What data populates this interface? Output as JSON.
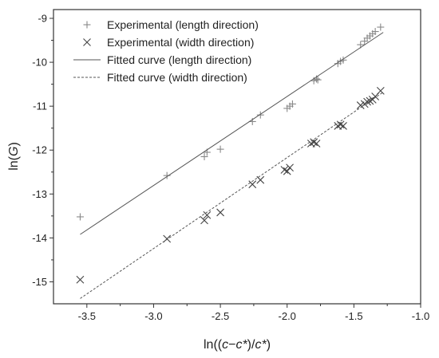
{
  "chart_data": {
    "type": "scatter",
    "xlabel_parts": [
      {
        "text": "ln(("
      },
      {
        "text": "c",
        "italic": true
      },
      {
        "text": "−"
      },
      {
        "text": "c*",
        "italic": true
      },
      {
        "text": ")/"
      },
      {
        "text": "c*",
        "italic": true
      },
      {
        "text": ")"
      }
    ],
    "ylabel_parts": [
      {
        "text": "ln("
      },
      {
        "text": "G",
        "italic": true
      },
      {
        "text": ")"
      }
    ],
    "xlim": [
      -3.75,
      -1.0
    ],
    "ylim": [
      -15.5,
      -8.8
    ],
    "x_ticks": [
      -3.5,
      -3.0,
      -2.5,
      -2.0,
      -1.5,
      -1.0
    ],
    "x_tick_labels": [
      "-3.5",
      "-3.0",
      "-2.5",
      "-2.0",
      "-1.5",
      "-1.0"
    ],
    "y_ticks": [
      -15,
      -14,
      -13,
      -12,
      -11,
      -10,
      -9
    ],
    "y_tick_labels": [
      "-15",
      "-14",
      "-13",
      "-12",
      "-11",
      "-10",
      "-9"
    ],
    "grid": false,
    "legend_position": "top-right",
    "series": [
      {
        "name": "Experimental (length direction)",
        "kind": "points",
        "marker": "plus",
        "color": "#888888",
        "x": [
          -3.55,
          -2.9,
          -2.62,
          -2.6,
          -2.5,
          -2.26,
          -2.2,
          -2.0,
          -1.98,
          -1.96,
          -1.8,
          -1.78,
          -1.77,
          -1.62,
          -1.6,
          -1.58,
          -1.45,
          -1.42,
          -1.4,
          -1.38,
          -1.36,
          -1.34,
          -1.3
        ],
        "y": [
          -13.52,
          -12.58,
          -12.15,
          -12.05,
          -11.98,
          -11.35,
          -11.2,
          -11.05,
          -11.0,
          -10.95,
          -10.42,
          -10.38,
          -10.4,
          -10.03,
          -9.98,
          -9.95,
          -9.6,
          -9.52,
          -9.45,
          -9.4,
          -9.35,
          -9.3,
          -9.2
        ]
      },
      {
        "name": "Experimental (width direction)",
        "kind": "points",
        "marker": "cross",
        "color": "#444444",
        "x": [
          -3.55,
          -2.9,
          -2.62,
          -2.6,
          -2.5,
          -2.26,
          -2.2,
          -2.02,
          -2.0,
          -1.98,
          -1.82,
          -1.8,
          -1.78,
          -1.62,
          -1.6,
          -1.58,
          -1.45,
          -1.42,
          -1.4,
          -1.38,
          -1.36,
          -1.34,
          -1.3
        ],
        "y": [
          -14.95,
          -14.02,
          -13.6,
          -13.48,
          -13.42,
          -12.78,
          -12.68,
          -12.45,
          -12.48,
          -12.4,
          -11.85,
          -11.82,
          -11.85,
          -11.45,
          -11.42,
          -11.45,
          -10.98,
          -10.95,
          -10.9,
          -10.88,
          -10.85,
          -10.78,
          -10.65
        ]
      },
      {
        "name": "Fitted curve (length direction)",
        "kind": "line",
        "dash": "solid",
        "color": "#555555",
        "x": [
          -3.55,
          -1.28
        ],
        "y": [
          -13.92,
          -9.32
        ]
      },
      {
        "name": "Fitted curve (width direction)",
        "kind": "line",
        "dash": "dashed",
        "color": "#555555",
        "x": [
          -3.55,
          -1.28
        ],
        "y": [
          -15.38,
          -10.68
        ]
      }
    ]
  }
}
